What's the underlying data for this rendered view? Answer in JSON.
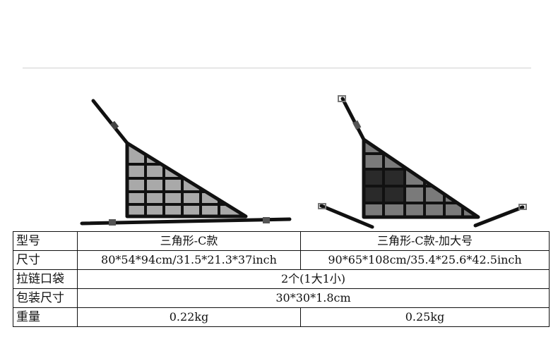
{
  "table": {
    "rows": [
      {
        "label": "型号",
        "a": "三角形-C款",
        "b": "三角形-C款-加大号"
      },
      {
        "label": "尺寸",
        "a": "80*54*94cm/31.5*21.3*37inch",
        "b": "90*65*108cm/35.4*25.6*42.5inch"
      },
      {
        "label": "拉链口袋",
        "span": "2个(1大1小)"
      },
      {
        "label": "包装尺寸",
        "span": "30*30*1.8cm"
      },
      {
        "label": "重量",
        "a": "0.22kg",
        "b": "0.25kg"
      }
    ]
  },
  "colors": {
    "net_frame": "#111111",
    "mesh_light": "#a9a9a9",
    "mesh_dark": "#2a2a2a",
    "border": "#111111"
  }
}
